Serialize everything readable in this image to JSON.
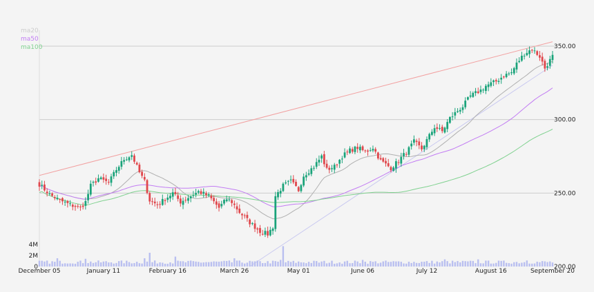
{
  "chart_data": {
    "type": "candlestick",
    "colors": {
      "up": "#1aa37a",
      "down": "#e0474c",
      "ma20": "#b0b0b0",
      "ma50": "#c27cf3",
      "ma100": "#7fd18f",
      "trend_upper": "#f2a0a0",
      "trend_lower": "#c9c9f0",
      "volume": "#b9bff0",
      "grid": "#cccccc",
      "background": "#f4f4f4"
    },
    "legend": [
      {
        "key": "ma20",
        "label": "ma20",
        "color": "#cccccc"
      },
      {
        "key": "ma50",
        "label": "ma50",
        "color": "#c27cf3"
      },
      {
        "key": "ma100",
        "label": "ma100",
        "color": "#7fd18f"
      }
    ],
    "x_ticks": [
      "December 05",
      "January 11",
      "February 16",
      "March 26",
      "May 01",
      "June 06",
      "July 12",
      "August 16",
      "September 20"
    ],
    "x_tick_index": [
      0,
      25,
      50,
      76,
      101,
      126,
      151,
      176,
      200
    ],
    "price_axis": {
      "ticks": [
        350,
        300,
        250,
        200
      ],
      "labels": [
        "350.00",
        "300.00",
        "250.00",
        "200.00"
      ],
      "range": [
        200,
        355
      ]
    },
    "volume_axis": {
      "ticks": [
        0,
        2000000,
        4000000
      ],
      "labels": [
        "0",
        "2M",
        "4M"
      ],
      "range": [
        0,
        5000000
      ]
    },
    "trend_lines": [
      {
        "name": "upper",
        "from": [
          0,
          262
        ],
        "to": [
          200,
          353
        ]
      },
      {
        "name": "lower",
        "from": [
          82,
          200
        ],
        "to": [
          200,
          337
        ]
      }
    ],
    "price_anchors": [
      [
        0,
        256
      ],
      [
        4,
        249
      ],
      [
        8,
        245
      ],
      [
        12,
        242
      ],
      [
        16,
        240
      ],
      [
        18,
        244
      ],
      [
        20,
        255
      ],
      [
        23,
        260
      ],
      [
        27,
        257
      ],
      [
        30,
        266
      ],
      [
        33,
        273
      ],
      [
        36,
        276
      ],
      [
        39,
        264
      ],
      [
        41,
        258
      ],
      [
        43,
        245
      ],
      [
        46,
        242
      ],
      [
        49,
        246
      ],
      [
        52,
        250
      ],
      [
        55,
        244
      ],
      [
        59,
        248
      ],
      [
        62,
        251
      ],
      [
        66,
        248
      ],
      [
        70,
        240
      ],
      [
        73,
        246
      ],
      [
        75,
        244
      ],
      [
        78,
        237
      ],
      [
        82,
        230
      ],
      [
        86,
        224
      ],
      [
        89,
        222
      ],
      [
        91,
        227
      ],
      [
        92,
        248
      ],
      [
        95,
        255
      ],
      [
        98,
        258
      ],
      [
        101,
        252
      ],
      [
        103,
        262
      ],
      [
        107,
        268
      ],
      [
        110,
        275
      ],
      [
        112,
        266
      ],
      [
        115,
        268
      ],
      [
        118,
        275
      ],
      [
        121,
        279
      ],
      [
        124,
        281
      ],
      [
        127,
        278
      ],
      [
        130,
        281
      ],
      [
        133,
        272
      ],
      [
        137,
        267
      ],
      [
        140,
        272
      ],
      [
        144,
        280
      ],
      [
        146,
        285
      ],
      [
        149,
        280
      ],
      [
        152,
        289
      ],
      [
        154,
        295
      ],
      [
        157,
        292
      ],
      [
        160,
        301
      ],
      [
        163,
        306
      ],
      [
        165,
        309
      ],
      [
        168,
        316
      ],
      [
        172,
        320
      ],
      [
        174,
        323
      ],
      [
        178,
        326
      ],
      [
        181,
        330
      ],
      [
        184,
        332
      ],
      [
        186,
        338
      ],
      [
        189,
        345
      ],
      [
        192,
        348
      ],
      [
        195,
        343
      ],
      [
        197,
        335
      ],
      [
        200,
        343
      ]
    ],
    "volume_spikes": {
      "7": 1500000,
      "18": 1400000,
      "41": 1500000,
      "43": 2500000,
      "53": 1800000,
      "76": 1500000,
      "94": 1200000,
      "95": 3700000,
      "126": 1200000,
      "158": 1300000,
      "171": 1300000,
      "190": 1100000
    }
  }
}
